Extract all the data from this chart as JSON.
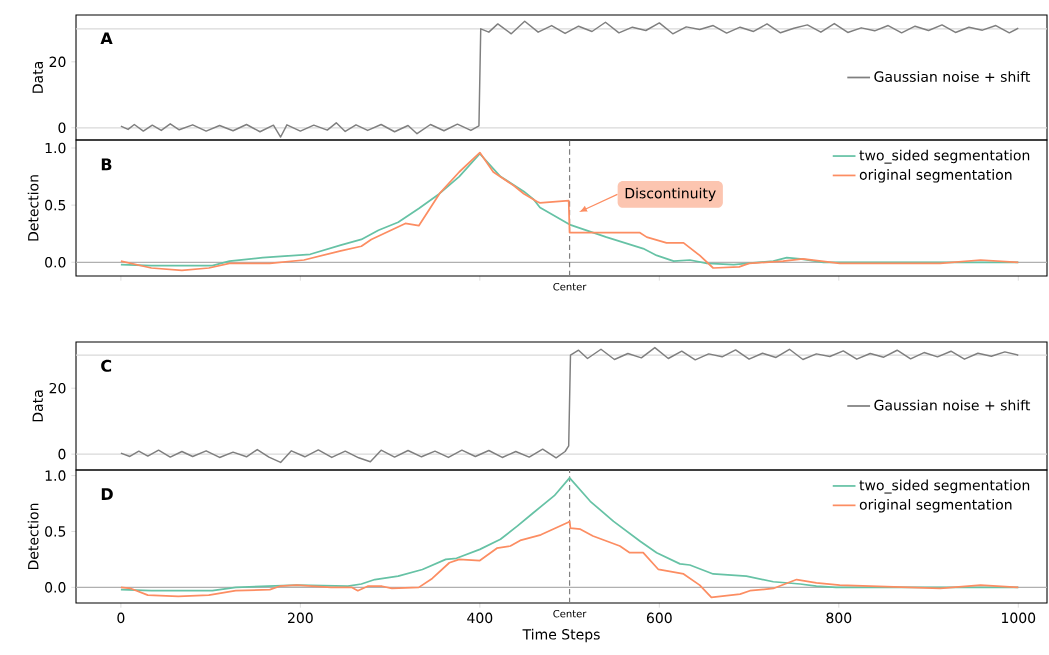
{
  "chart_data": [
    {
      "type": "line",
      "title": "A",
      "ylabel": "Data",
      "xlim": [
        -50,
        1032
      ],
      "ylim": [
        -3.7,
        34.2
      ],
      "yticks": [
        0,
        20
      ],
      "tick_labels": "y",
      "legend": "right",
      "ref_lines": [
        {
          "axis": "y",
          "value": 0,
          "color": "#d9d9d9"
        },
        {
          "axis": "y",
          "value": 30,
          "color": "#d9d9d9"
        }
      ],
      "series": [
        {
          "name": "Gaussian noise + shift",
          "color": "#7f7f7f",
          "x": [
            0,
            8,
            15,
            25,
            35,
            45,
            55,
            65,
            80,
            95,
            110,
            125,
            140,
            155,
            170,
            178,
            185,
            200,
            215,
            230,
            240,
            250,
            262,
            275,
            290,
            305,
            320,
            330,
            345,
            360,
            375,
            390,
            399,
            401,
            410,
            420,
            435,
            450,
            465,
            480,
            495,
            510,
            525,
            540,
            555,
            570,
            585,
            600,
            615,
            630,
            645,
            660,
            675,
            690,
            705,
            720,
            735,
            750,
            765,
            780,
            795,
            810,
            825,
            840,
            855,
            870,
            885,
            900,
            915,
            930,
            945,
            960,
            975,
            990,
            1000
          ],
          "values": [
            0.5,
            -0.5,
            1,
            -1,
            0.8,
            -0.8,
            1.2,
            -0.6,
            0.9,
            -1,
            0.7,
            -0.9,
            1,
            -1.2,
            0.8,
            -2.8,
            0.9,
            -1,
            0.8,
            -0.7,
            1.5,
            -1.1,
            0.9,
            -0.8,
            1,
            -1.2,
            0.7,
            -1.8,
            1,
            -0.9,
            1.1,
            -0.8,
            0.6,
            30,
            29,
            31.5,
            28.5,
            32.3,
            29,
            31,
            28.6,
            30.8,
            29.2,
            32,
            28.8,
            30.5,
            29.5,
            31.8,
            28.5,
            30.6,
            29.8,
            31,
            28.7,
            30.5,
            29.2,
            31.5,
            28.8,
            30.2,
            31.2,
            29,
            31.6,
            28.9,
            30.3,
            29.4,
            31,
            28.8,
            30.8,
            29.5,
            31.2,
            28.9,
            30.5,
            29.6,
            31,
            28.8,
            30.2
          ]
        }
      ]
    },
    {
      "type": "line",
      "title": "B",
      "ylabel": "Detection",
      "xlim": [
        -50,
        1032
      ],
      "ylim": [
        -0.12,
        1.07
      ],
      "xticks": [
        0,
        200,
        400,
        600,
        800,
        1000
      ],
      "yticks": [
        {
          "value": 0,
          "label": "0.0"
        },
        {
          "value": 0.5,
          "label": "0.5"
        },
        {
          "value": 1,
          "label": "1.0"
        }
      ],
      "tick_labels": "y",
      "legend": "top right",
      "ref_lines": [
        {
          "axis": "y",
          "value": 0,
          "color": "#b0b0b0"
        },
        {
          "axis": "x",
          "value": 500,
          "label": "Center",
          "color": "#808080",
          "line_style": "dashed"
        }
      ],
      "annotations": [
        "Discontinuity"
      ],
      "series": [
        {
          "name": "two_sided segmentation",
          "color": "#66c2a5",
          "x": [
            0,
            34,
            102,
            121,
            158,
            211,
            245,
            268,
            287,
            309,
            332,
            355,
            377,
            400,
            423,
            449,
            460,
            467,
            500,
            541,
            582,
            597,
            616,
            634,
            653,
            683,
            727,
            742,
            757,
            783,
            1000
          ],
          "values": [
            -0.02,
            -0.03,
            -0.03,
            0.01,
            0.04,
            0.07,
            0.15,
            0.2,
            0.28,
            0.35,
            0.47,
            0.6,
            0.75,
            0.95,
            0.75,
            0.62,
            0.55,
            0.48,
            0.33,
            0.22,
            0.12,
            0.06,
            0.01,
            0.02,
            -0.01,
            -0.02,
            0.01,
            0.04,
            0.03,
            0,
            0
          ]
        },
        {
          "name": "original segmentation",
          "color": "#fc8d62",
          "x": [
            0,
            34,
            68,
            98,
            121,
            166,
            204,
            245,
            268,
            279,
            317,
            332,
            355,
            377,
            400,
            415,
            438,
            449,
            464,
            467,
            499,
            500,
            578,
            586,
            608,
            627,
            645,
            660,
            689,
            700,
            738,
            760,
            801,
            913,
            958,
            1000
          ],
          "values": [
            0.01,
            -0.05,
            -0.07,
            -0.05,
            -0.01,
            -0.01,
            0.02,
            0.1,
            0.14,
            0.2,
            0.34,
            0.32,
            0.6,
            0.79,
            0.96,
            0.79,
            0.67,
            0.6,
            0.53,
            0.52,
            0.54,
            0.26,
            0.26,
            0.22,
            0.17,
            0.17,
            0.06,
            -0.05,
            -0.04,
            -0.01,
            0.01,
            0.03,
            -0.01,
            -0.01,
            0.02,
            0
          ]
        }
      ]
    },
    {
      "type": "line",
      "title": "C",
      "ylabel": "Data",
      "xlim": [
        -50,
        1032
      ],
      "ylim": [
        -4.8,
        34
      ],
      "yticks": [
        0,
        20
      ],
      "tick_labels": "y",
      "legend": "right",
      "ref_lines": [
        {
          "axis": "y",
          "value": 0,
          "color": "#d9d9d9"
        },
        {
          "axis": "y",
          "value": 30,
          "color": "#d9d9d9"
        }
      ],
      "series": [
        {
          "name": "Gaussian noise + shift",
          "color": "#7f7f7f",
          "x": [
            0,
            10,
            20,
            30,
            42,
            55,
            68,
            80,
            95,
            110,
            125,
            140,
            152,
            165,
            178,
            190,
            205,
            220,
            235,
            250,
            265,
            278,
            290,
            305,
            320,
            335,
            350,
            365,
            380,
            395,
            410,
            425,
            440,
            455,
            470,
            485,
            495,
            499,
            501,
            510,
            520,
            535,
            550,
            565,
            580,
            595,
            610,
            625,
            640,
            655,
            670,
            685,
            700,
            715,
            730,
            745,
            760,
            775,
            790,
            805,
            820,
            835,
            850,
            865,
            880,
            895,
            910,
            925,
            940,
            955,
            970,
            985,
            1000
          ],
          "values": [
            0.3,
            -0.7,
            0.9,
            -0.6,
            1.2,
            -0.9,
            0.8,
            -0.7,
            1,
            -1,
            0.6,
            -0.8,
            1.4,
            -0.9,
            -2.5,
            1,
            -0.8,
            1.3,
            -1,
            0.9,
            -1.1,
            -2.3,
            1.2,
            -0.9,
            1.1,
            -0.8,
            0.9,
            -1,
            1.2,
            -0.7,
            1.1,
            -1,
            0.8,
            -0.9,
            1.5,
            -1.1,
            0.8,
            2.5,
            30,
            31.5,
            29,
            31.8,
            28.7,
            30.5,
            29.2,
            32.3,
            29,
            31.2,
            28.6,
            30.4,
            29.5,
            31.6,
            28.8,
            30.6,
            29.3,
            31.8,
            28.7,
            30.4,
            29.6,
            31.3,
            28.8,
            30.5,
            29.4,
            31.5,
            28.9,
            30.8,
            29.5,
            31.2,
            28.8,
            30.6,
            29.7,
            31,
            30
          ]
        }
      ]
    },
    {
      "type": "line",
      "title": "D",
      "ylabel": "Detection",
      "xlabel": "Time Steps",
      "xlim": [
        -50,
        1032
      ],
      "ylim": [
        -0.14,
        1.05
      ],
      "xticks": [
        0,
        200,
        400,
        600,
        800,
        1000
      ],
      "yticks": [
        {
          "value": 0,
          "label": "0.0"
        },
        {
          "value": 0.5,
          "label": "0.5"
        },
        {
          "value": 1,
          "label": "1.0"
        }
      ],
      "legend": "top right",
      "ref_lines": [
        {
          "axis": "y",
          "value": 0,
          "color": "#b0b0b0"
        },
        {
          "axis": "x",
          "value": 500,
          "label": "Center",
          "color": "#808080",
          "line_style": "dashed"
        }
      ],
      "series": [
        {
          "name": "two_sided segmentation",
          "color": "#66c2a5",
          "x": [
            0,
            34,
            102,
            128,
            196,
            253,
            268,
            283,
            309,
            336,
            362,
            374,
            400,
            423,
            442,
            460,
            483,
            500,
            523,
            549,
            579,
            597,
            623,
            634,
            660,
            697,
            727,
            757,
            775,
            797,
            1000
          ],
          "values": [
            -0.02,
            -0.03,
            -0.03,
            0,
            0.02,
            0.01,
            0.03,
            0.07,
            0.1,
            0.16,
            0.25,
            0.26,
            0.34,
            0.43,
            0.55,
            0.67,
            0.82,
            0.98,
            0.77,
            0.59,
            0.41,
            0.31,
            0.21,
            0.2,
            0.12,
            0.1,
            0.05,
            0.03,
            0.01,
            0,
            0
          ]
        },
        {
          "name": "original segmentation",
          "color": "#fc8d62",
          "x": [
            0,
            11,
            30,
            64,
            98,
            128,
            166,
            177,
            196,
            234,
            257,
            264,
            275,
            291,
            302,
            332,
            347,
            366,
            377,
            400,
            419,
            434,
            445,
            468,
            498,
            500,
            501,
            512,
            526,
            556,
            567,
            582,
            599,
            627,
            645,
            658,
            690,
            701,
            727,
            753,
            775,
            801,
            913,
            958,
            1000
          ],
          "values": [
            0,
            -0.01,
            -0.07,
            -0.08,
            -0.07,
            -0.03,
            -0.02,
            0.01,
            0.02,
            0,
            0,
            -0.03,
            0.01,
            0.01,
            -0.01,
            0,
            0.08,
            0.22,
            0.25,
            0.24,
            0.35,
            0.37,
            0.42,
            0.47,
            0.58,
            0.59,
            0.53,
            0.52,
            0.46,
            0.37,
            0.31,
            0.31,
            0.16,
            0.12,
            0.02,
            -0.09,
            -0.06,
            -0.03,
            -0.01,
            0.07,
            0.04,
            0.02,
            -0.01,
            0.02,
            0
          ]
        }
      ]
    }
  ]
}
